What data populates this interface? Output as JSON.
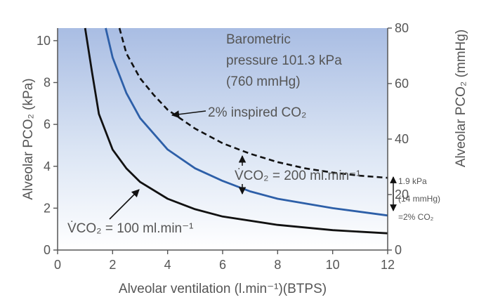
{
  "chart_data": {
    "type": "line",
    "xlabel": "Alveolar ventilation (l.min⁻¹)(BTPS)",
    "ylabel": "Alveolar PCO₂ (kPa)",
    "ylabel_right": "Alveolar PCO₂ (mmHg)",
    "xlim": [
      0,
      12
    ],
    "ylim": [
      0,
      10.6
    ],
    "ylim_right_mmHg": [
      0,
      80
    ],
    "x_ticks": [
      "0",
      "2",
      "4",
      "6",
      "8",
      "10",
      "12"
    ],
    "y_ticks": [
      "0",
      "2",
      "4",
      "6",
      "8",
      "10"
    ],
    "y_ticks_right": [
      "0",
      "20",
      "40",
      "60",
      "80"
    ],
    "grid": false,
    "background": "gradient light blue (top) to white (bottom)",
    "series": [
      {
        "name": "V̇CO₂ = 100 ml.min⁻¹",
        "color": "#111111",
        "style": "solid",
        "x": [
          1.0,
          1.25,
          1.5,
          2,
          2.5,
          3,
          4,
          5,
          6,
          8,
          10,
          12
        ],
        "y": [
          10.6,
          8.5,
          6.5,
          4.8,
          3.9,
          3.25,
          2.45,
          1.95,
          1.6,
          1.2,
          0.95,
          0.8
        ]
      },
      {
        "name": "V̇CO₂ = 200 ml.min⁻¹",
        "color": "#2d5fa8",
        "style": "solid",
        "x": [
          1.75,
          2,
          2.5,
          3,
          4,
          5,
          6,
          7,
          8,
          10,
          12
        ],
        "y": [
          10.6,
          9.2,
          7.5,
          6.3,
          4.8,
          3.9,
          3.3,
          2.8,
          2.45,
          2.0,
          1.65
        ]
      },
      {
        "name": "2% inspired CO₂",
        "color": "#111111",
        "style": "dashed",
        "x": [
          2.25,
          2.5,
          3,
          3.5,
          4,
          5,
          6,
          7,
          8,
          9,
          10,
          11,
          12
        ],
        "y": [
          10.6,
          9.4,
          8.2,
          7.4,
          6.7,
          5.8,
          5.1,
          4.6,
          4.2,
          3.9,
          3.7,
          3.55,
          3.45
        ]
      }
    ],
    "annotations": {
      "pressure_line1": "Barometric",
      "pressure_line2": "pressure 101.3 kPa",
      "pressure_line3": "(760 mmHg)",
      "inspired_label": "2% inspired CO₂",
      "vco2_200_label": "V̇CO₂ = 200 ml.min⁻¹",
      "vco2_100_label": "V̇CO₂ = 100 ml.min⁻¹",
      "shift_line1": "1.9 kPa",
      "shift_line2": "(14 mmHg)",
      "shift_line3": "=2% CO₂"
    }
  }
}
